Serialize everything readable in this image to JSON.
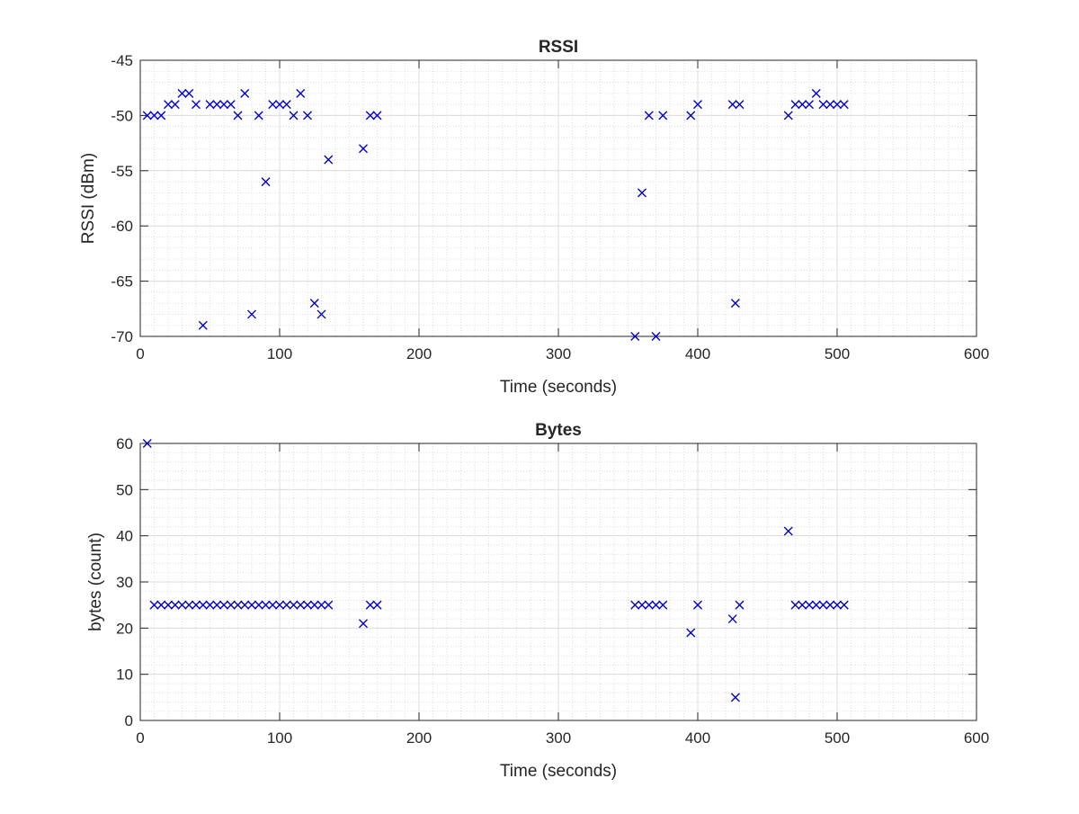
{
  "chart_data": [
    {
      "type": "scatter",
      "title": "RSSI",
      "xlabel": "Time (seconds)",
      "ylabel": "RSSI (dBm)",
      "xlim": [
        0,
        600
      ],
      "ylim": [
        -70,
        -45
      ],
      "xticks": [
        0,
        100,
        200,
        300,
        400,
        500,
        600
      ],
      "yticks": [
        -70,
        -65,
        -60,
        -55,
        -50,
        -45
      ],
      "grid": "on",
      "minor_grid": "on",
      "marker": "x",
      "color": "#0000cc",
      "series": [
        {
          "x": [
            5,
            10,
            15,
            20,
            25,
            30,
            35,
            40,
            45,
            50,
            55,
            60,
            65,
            70,
            75,
            80,
            85,
            90,
            95,
            100,
            105,
            110,
            115,
            120,
            125,
            130,
            135,
            160,
            165,
            170,
            355,
            360,
            365,
            370,
            375,
            395,
            400,
            425,
            430,
            427,
            465,
            470,
            475,
            480,
            485,
            490,
            495,
            500,
            505
          ],
          "y": [
            -50,
            -50,
            -50,
            -49,
            -49,
            -48,
            -48,
            -49,
            -69,
            -49,
            -49,
            -49,
            -49,
            -50,
            -48,
            -68,
            -50,
            -56,
            -49,
            -49,
            -49,
            -50,
            -48,
            -50,
            -67,
            -68,
            -54,
            -53,
            -50,
            -50,
            -70,
            -57,
            -50,
            -70,
            -50,
            -50,
            -49,
            -49,
            -49,
            -67,
            -50,
            -49,
            -49,
            -49,
            -48,
            -49,
            -49,
            -49,
            -49
          ]
        }
      ]
    },
    {
      "type": "scatter",
      "title": "Bytes",
      "xlabel": "Time (seconds)",
      "ylabel": "bytes (count)",
      "xlim": [
        0,
        600
      ],
      "ylim": [
        0,
        60
      ],
      "xticks": [
        0,
        100,
        200,
        300,
        400,
        500,
        600
      ],
      "yticks": [
        0,
        10,
        20,
        30,
        40,
        50,
        60
      ],
      "grid": "on",
      "minor_grid": "on",
      "marker": "x",
      "color": "#0000cc",
      "series": [
        {
          "x": [
            5,
            10,
            15,
            20,
            25,
            30,
            35,
            40,
            45,
            50,
            55,
            60,
            65,
            70,
            75,
            80,
            85,
            90,
            95,
            100,
            105,
            110,
            115,
            120,
            125,
            130,
            135,
            160,
            165,
            170,
            355,
            360,
            365,
            370,
            375,
            395,
            400,
            425,
            427,
            430,
            465,
            470,
            475,
            480,
            485,
            490,
            495,
            500,
            505
          ],
          "y": [
            60,
            25,
            25,
            25,
            25,
            25,
            25,
            25,
            25,
            25,
            25,
            25,
            25,
            25,
            25,
            25,
            25,
            25,
            25,
            25,
            25,
            25,
            25,
            25,
            25,
            25,
            25,
            21,
            25,
            25,
            25,
            25,
            25,
            25,
            25,
            19,
            25,
            22,
            5,
            25,
            41,
            25,
            25,
            25,
            25,
            25,
            25,
            25,
            25
          ]
        }
      ]
    }
  ]
}
